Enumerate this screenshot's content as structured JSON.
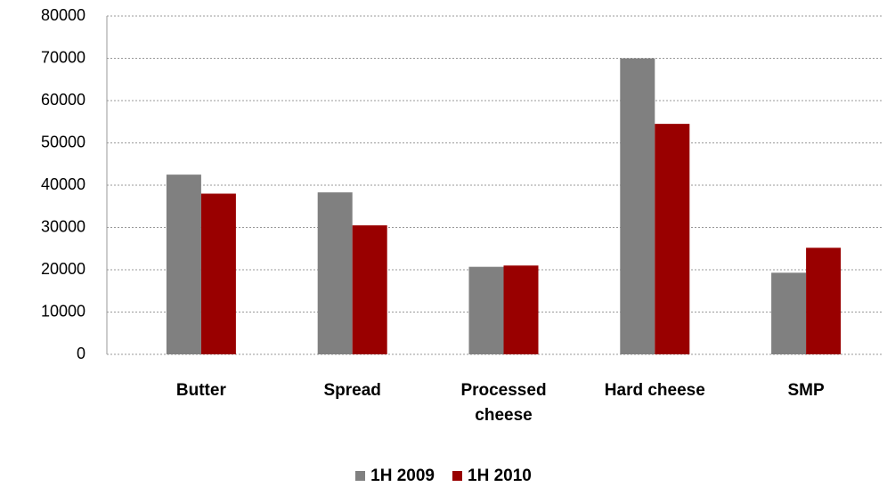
{
  "chart_data": {
    "type": "bar",
    "categories": [
      "Butter",
      "Spread",
      "Processed cheese",
      "Hard cheese",
      "SMP"
    ],
    "series": [
      {
        "name": "1H 2009",
        "color": "#808080",
        "values": [
          42500,
          38300,
          20700,
          70000,
          19300
        ]
      },
      {
        "name": "1H 2010",
        "color": "#990000",
        "values": [
          38000,
          30500,
          21000,
          54500,
          25200
        ]
      }
    ],
    "ylim": [
      0,
      80000
    ],
    "yticks": [
      0,
      10000,
      20000,
      30000,
      40000,
      50000,
      60000,
      70000,
      80000
    ],
    "grid": true
  }
}
